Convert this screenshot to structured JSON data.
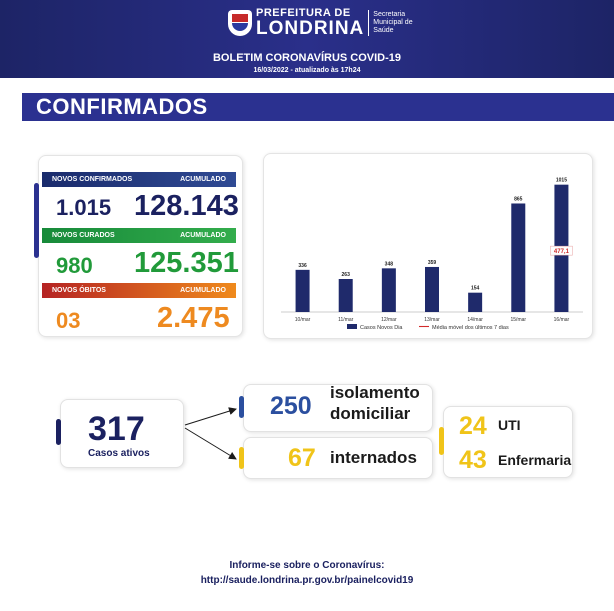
{
  "header": {
    "logo_line1": "PREFEITURA DE",
    "logo_line2": "LONDRINA",
    "logo_sec1": "Secretaria",
    "logo_sec2": "Municipal de",
    "logo_sec3": "Saúde",
    "bulletin": "BOLETIM CORONAVÍRUS COVID-19",
    "updated": "16/03/2022 - atualizado às 17h24"
  },
  "section_title": "CONFIRMADOS",
  "stats": {
    "new_confirmed_label": "NOVOS CONFIRMADOS",
    "new_confirmed": "1.015",
    "acc_label_1": "ACUMULADO",
    "acc_confirmed": "128.143",
    "new_cured_label": "NOVOS CURADOS",
    "new_cured": "980",
    "acc_label_2": "ACUMULADO",
    "acc_cured": "125.351",
    "new_deaths_label": "NOVOS ÓBITOS",
    "new_deaths": "03",
    "acc_label_3": "ACUMULADO",
    "acc_deaths": "2.475"
  },
  "chart_data": {
    "type": "bar",
    "categories": [
      "10/mar",
      "11/mar",
      "12/mar",
      "13/mar",
      "14/mar",
      "15/mar",
      "16/mar"
    ],
    "series": [
      {
        "name": "Casos Novos Dia",
        "type": "bar",
        "values": [
          336,
          263,
          348,
          359,
          154,
          865,
          1015
        ],
        "color": "#1f2a6b"
      },
      {
        "name": "Média móvel dos últimos 7 dias",
        "type": "line",
        "values": [
          null,
          null,
          null,
          null,
          null,
          null,
          477.1
        ],
        "color": "#d22b2b"
      }
    ],
    "bar_labels": [
      "336",
      "263",
      "348",
      "359",
      "154",
      "865",
      "1015"
    ],
    "line_label": "477,1",
    "ylim": [
      0,
      1100
    ],
    "grid": false,
    "legend_position": "bottom"
  },
  "active": {
    "total": "317",
    "total_label": "Casos ativos",
    "isolation": "250",
    "isolation_label_1": "isolamento",
    "isolation_label_2": "domiciliar",
    "hospitalized": "67",
    "hospitalized_label": "internados",
    "icu": "24",
    "icu_label": "UTI",
    "ward": "43",
    "ward_label": "Enfermaria"
  },
  "colors": {
    "navy": "#1b2160",
    "blue": "#2b4f9f",
    "green": "#219a3a",
    "orange": "#ee8a20",
    "yellow": "#f0c419",
    "red": "#d22b2b"
  },
  "footer": {
    "line1": "Informe-se sobre o Coronavírus:",
    "line2": "http://saude.londrina.pr.gov.br/painelcovid19"
  }
}
